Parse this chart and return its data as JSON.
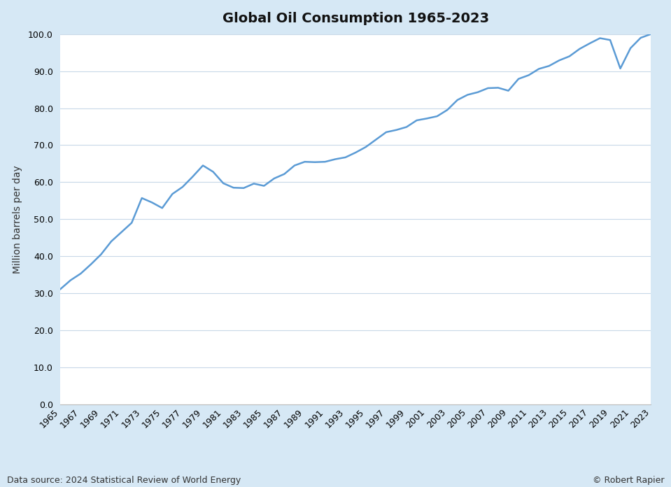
{
  "title": "Global Oil Consumption 1965-2023",
  "ylabel": "Million barrels per day",
  "source_text": "Data source: 2024 Statistical Review of World Energy",
  "copyright_text": "© Robert Rapier",
  "background_color": "#d6e8f5",
  "plot_bg_color": "#ffffff",
  "line_color": "#5b9bd5",
  "line_width": 1.8,
  "xlim": [
    1965,
    2023
  ],
  "ylim": [
    0,
    100
  ],
  "yticks": [
    0,
    10,
    20,
    30,
    40,
    50,
    60,
    70,
    80,
    90,
    100
  ],
  "years": [
    1965,
    1966,
    1967,
    1968,
    1969,
    1970,
    1971,
    1972,
    1973,
    1974,
    1975,
    1976,
    1977,
    1978,
    1979,
    1980,
    1981,
    1982,
    1983,
    1984,
    1985,
    1986,
    1987,
    1988,
    1989,
    1990,
    1991,
    1992,
    1993,
    1994,
    1995,
    1996,
    1997,
    1998,
    1999,
    2000,
    2001,
    2002,
    2003,
    2004,
    2005,
    2006,
    2007,
    2008,
    2009,
    2010,
    2011,
    2012,
    2013,
    2014,
    2015,
    2016,
    2017,
    2018,
    2019,
    2020,
    2021,
    2022,
    2023
  ],
  "values": [
    31.1,
    33.5,
    35.3,
    37.8,
    40.5,
    44.0,
    46.5,
    49.0,
    55.7,
    54.5,
    53.0,
    56.8,
    58.7,
    61.5,
    64.5,
    62.8,
    59.7,
    58.5,
    58.4,
    59.6,
    59.0,
    61.0,
    62.2,
    64.5,
    65.5,
    65.4,
    65.5,
    66.2,
    66.7,
    68.0,
    69.5,
    71.5,
    73.5,
    74.1,
    74.9,
    76.7,
    77.2,
    77.8,
    79.5,
    82.2,
    83.6,
    84.3,
    85.4,
    85.5,
    84.7,
    87.9,
    88.9,
    90.6,
    91.4,
    92.9,
    94.0,
    96.0,
    97.5,
    98.9,
    98.4,
    90.7,
    96.2,
    99.0,
    100.0
  ],
  "title_fontsize": 14,
  "tick_fontsize": 9,
  "ylabel_fontsize": 10,
  "footer_fontsize": 9
}
